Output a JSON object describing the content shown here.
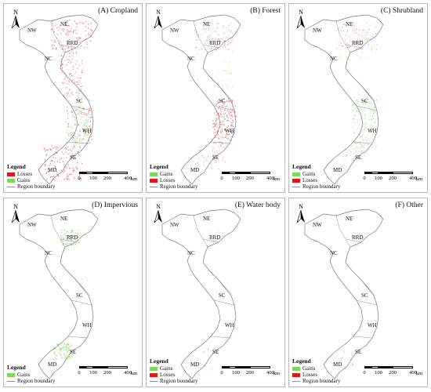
{
  "north_label": "N",
  "scale": {
    "ticks": [
      "0",
      "100",
      "200",
      "400"
    ],
    "unit": "km"
  },
  "regions": [
    "NW",
    "NE",
    "RRD",
    "NC",
    "SC",
    "WH",
    "SE",
    "MD"
  ],
  "legend_title": "Legend",
  "boundary_label": "Region boundary",
  "colors": {
    "loss": "#e8141c",
    "gain": "#7cd85a",
    "boundary": "#8a8aa8",
    "land": "#ffffff"
  },
  "panels": [
    {
      "title": "(A) Cropland",
      "legend": [
        {
          "label": "Losses",
          "color": "#e8141c"
        },
        {
          "label": "Gains",
          "color": "#7cd85a"
        }
      ]
    },
    {
      "title": "(B) Forest",
      "legend": [
        {
          "label": "Gains",
          "color": "#7cd85a"
        },
        {
          "label": "Losses",
          "color": "#e8141c"
        }
      ]
    },
    {
      "title": "(C) Shrubland",
      "legend": [
        {
          "label": "Gains",
          "color": "#7cd85a"
        },
        {
          "label": "Losses",
          "color": "#e8141c"
        }
      ]
    },
    {
      "title": "(D) Impervious",
      "legend": [
        {
          "label": "Gains",
          "color": "#7cd85a"
        }
      ]
    },
    {
      "title": "(E) Water body",
      "legend": [
        {
          "label": "Gains",
          "color": "#7cd85a"
        },
        {
          "label": "Losses",
          "color": "#e8141c"
        }
      ]
    },
    {
      "title": "(F) Other",
      "legend": [
        {
          "label": "Gains",
          "color": "#7cd85a"
        },
        {
          "label": "Losses",
          "color": "#e8141c"
        }
      ]
    }
  ]
}
